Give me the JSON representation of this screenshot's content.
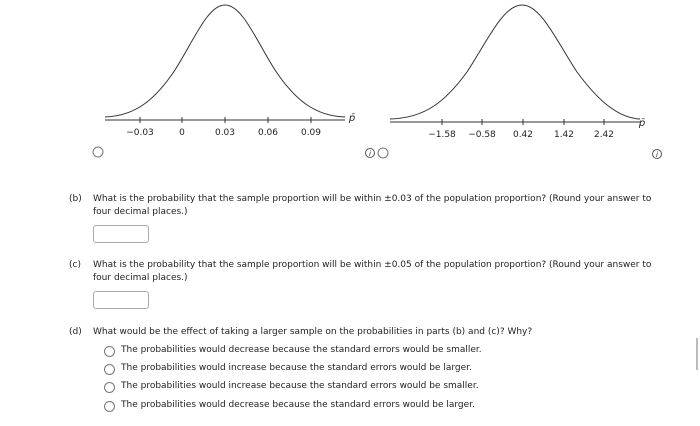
{
  "graphs": [
    {
      "ticks": [
        "−0.03",
        "0",
        "0.03",
        "0.06",
        "0.09"
      ],
      "axis_label": "p̄"
    },
    {
      "ticks": [
        "−1.58",
        "−0.58",
        "0.42",
        "1.42",
        "2.42"
      ],
      "axis_label": "p̄"
    }
  ],
  "questions": [
    {
      "label": "(b)",
      "lines": [
        "What is the probability that the sample proportion will be within ±0.03 of the population proportion? (Round your answer to",
        "four decimal places.)"
      ]
    },
    {
      "label": "(c)",
      "lines": [
        "What is the probability that the sample proportion will be within ±0.05 of the population proportion? (Round your answer to",
        "four decimal places.)"
      ]
    },
    {
      "label": "(d)",
      "lines": [
        "What would be the effect of taking a larger sample on the probabilities in parts (b) and (c)? Why?"
      ],
      "options": [
        "The probabilities would decrease because the standard errors would be smaller.",
        "The probabilities would increase because the standard errors would be larger.",
        "The probabilities would increase because the standard errors would be smaller.",
        "The probabilities would decrease because the standard errors would be larger."
      ]
    }
  ]
}
